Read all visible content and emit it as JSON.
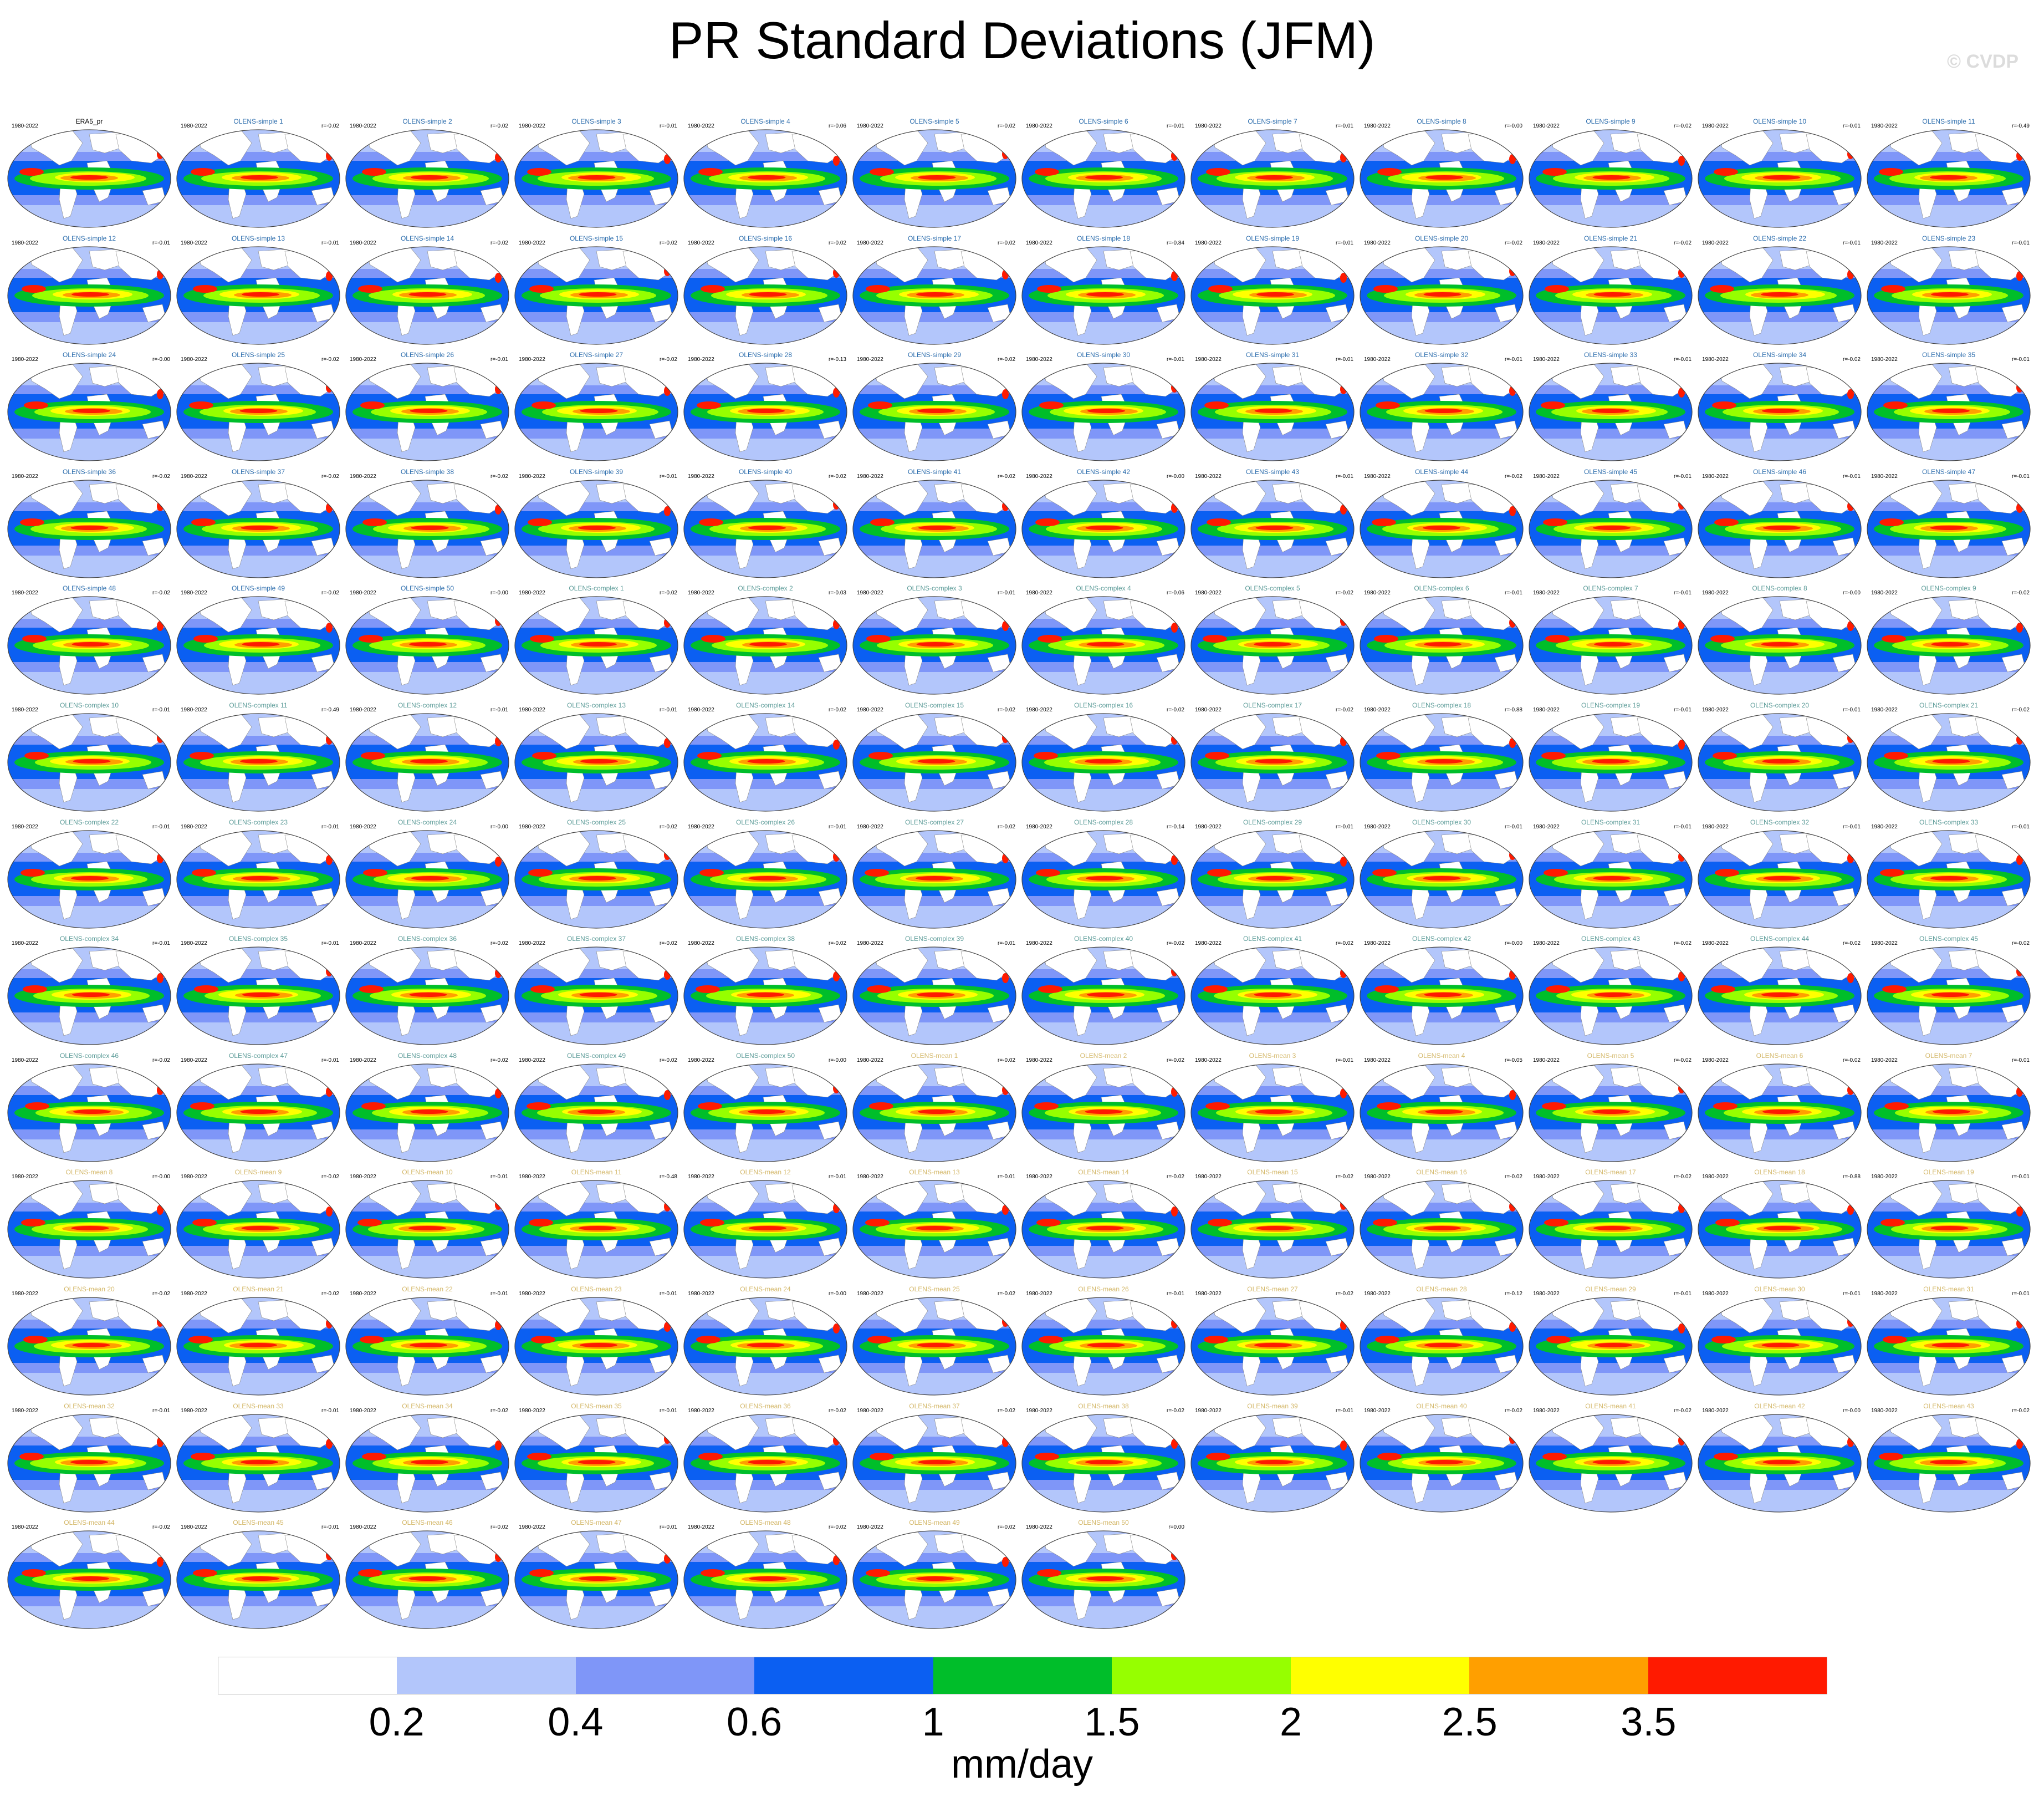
{
  "figure": {
    "title": "PR Standard Deviations (JFM)",
    "watermark": "© CVDP",
    "colorbar_units": "mm/day",
    "colorbar_labels": [
      "0.2",
      "0.4",
      "0.6",
      "1",
      "1.5",
      "2",
      "2.5",
      "3.5"
    ],
    "colorbar_colors": [
      "#ffffff",
      "#b3c6fb",
      "#7f96f8",
      "#0b5ff2",
      "#00be2a",
      "#96ff00",
      "#ffff00",
      "#ff9f00",
      "#ff1a00"
    ]
  },
  "title_colors": {
    "obs": "#000000",
    "simple": "#2f6fae",
    "complex": "#5d9c99",
    "mean": "#d4b86a"
  },
  "panels": [
    {
      "title": "ERA5_pr",
      "years": "1980-2022",
      "r": "",
      "group": "obs"
    },
    {
      "title": "OLENS-simple 1",
      "years": "1980-2022",
      "r": "r=-0.02",
      "group": "simple"
    },
    {
      "title": "OLENS-simple 2",
      "years": "1980-2022",
      "r": "r=-0.02",
      "group": "simple"
    },
    {
      "title": "OLENS-simple 3",
      "years": "1980-2022",
      "r": "r=-0.01",
      "group": "simple"
    },
    {
      "title": "OLENS-simple 4",
      "years": "1980-2022",
      "r": "r=-0.06",
      "group": "simple"
    },
    {
      "title": "OLENS-simple 5",
      "years": "1980-2022",
      "r": "r=-0.02",
      "group": "simple"
    },
    {
      "title": "OLENS-simple 6",
      "years": "1980-2022",
      "r": "r=-0.01",
      "group": "simple"
    },
    {
      "title": "OLENS-simple 7",
      "years": "1980-2022",
      "r": "r=-0.01",
      "group": "simple"
    },
    {
      "title": "OLENS-simple 8",
      "years": "1980-2022",
      "r": "r=-0.00",
      "group": "simple"
    },
    {
      "title": "OLENS-simple 9",
      "years": "1980-2022",
      "r": "r=-0.02",
      "group": "simple"
    },
    {
      "title": "OLENS-simple 10",
      "years": "1980-2022",
      "r": "r=-0.01",
      "group": "simple"
    },
    {
      "title": "OLENS-simple 11",
      "years": "1980-2022",
      "r": "r=-0.49",
      "group": "simple"
    },
    {
      "title": "OLENS-simple 12",
      "years": "1980-2022",
      "r": "r=-0.01",
      "group": "simple"
    },
    {
      "title": "OLENS-simple 13",
      "years": "1980-2022",
      "r": "r=-0.01",
      "group": "simple"
    },
    {
      "title": "OLENS-simple 14",
      "years": "1980-2022",
      "r": "r=-0.02",
      "group": "simple"
    },
    {
      "title": "OLENS-simple 15",
      "years": "1980-2022",
      "r": "r=-0.02",
      "group": "simple"
    },
    {
      "title": "OLENS-simple 16",
      "years": "1980-2022",
      "r": "r=-0.02",
      "group": "simple"
    },
    {
      "title": "OLENS-simple 17",
      "years": "1980-2022",
      "r": "r=-0.02",
      "group": "simple"
    },
    {
      "title": "OLENS-simple 18",
      "years": "1980-2022",
      "r": "r=-0.84",
      "group": "simple"
    },
    {
      "title": "OLENS-simple 19",
      "years": "1980-2022",
      "r": "r=-0.01",
      "group": "simple"
    },
    {
      "title": "OLENS-simple 20",
      "years": "1980-2022",
      "r": "r=-0.02",
      "group": "simple"
    },
    {
      "title": "OLENS-simple 21",
      "years": "1980-2022",
      "r": "r=-0.02",
      "group": "simple"
    },
    {
      "title": "OLENS-simple 22",
      "years": "1980-2022",
      "r": "r=-0.01",
      "group": "simple"
    },
    {
      "title": "OLENS-simple 23",
      "years": "1980-2022",
      "r": "r=-0.01",
      "group": "simple"
    },
    {
      "title": "OLENS-simple 24",
      "years": "1980-2022",
      "r": "r=-0.00",
      "group": "simple"
    },
    {
      "title": "OLENS-simple 25",
      "years": "1980-2022",
      "r": "r=-0.02",
      "group": "simple"
    },
    {
      "title": "OLENS-simple 26",
      "years": "1980-2022",
      "r": "r=-0.01",
      "group": "simple"
    },
    {
      "title": "OLENS-simple 27",
      "years": "1980-2022",
      "r": "r=-0.02",
      "group": "simple"
    },
    {
      "title": "OLENS-simple 28",
      "years": "1980-2022",
      "r": "r=-0.13",
      "group": "simple"
    },
    {
      "title": "OLENS-simple 29",
      "years": "1980-2022",
      "r": "r=-0.02",
      "group": "simple"
    },
    {
      "title": "OLENS-simple 30",
      "years": "1980-2022",
      "r": "r=-0.01",
      "group": "simple"
    },
    {
      "title": "OLENS-simple 31",
      "years": "1980-2022",
      "r": "r=-0.01",
      "group": "simple"
    },
    {
      "title": "OLENS-simple 32",
      "years": "1980-2022",
      "r": "r=-0.01",
      "group": "simple"
    },
    {
      "title": "OLENS-simple 33",
      "years": "1980-2022",
      "r": "r=-0.01",
      "group": "simple"
    },
    {
      "title": "OLENS-simple 34",
      "years": "1980-2022",
      "r": "r=-0.02",
      "group": "simple"
    },
    {
      "title": "OLENS-simple 35",
      "years": "1980-2022",
      "r": "r=-0.01",
      "group": "simple"
    },
    {
      "title": "OLENS-simple 36",
      "years": "1980-2022",
      "r": "r=-0.02",
      "group": "simple"
    },
    {
      "title": "OLENS-simple 37",
      "years": "1980-2022",
      "r": "r=-0.02",
      "group": "simple"
    },
    {
      "title": "OLENS-simple 38",
      "years": "1980-2022",
      "r": "r=-0.02",
      "group": "simple"
    },
    {
      "title": "OLENS-simple 39",
      "years": "1980-2022",
      "r": "r=-0.01",
      "group": "simple"
    },
    {
      "title": "OLENS-simple 40",
      "years": "1980-2022",
      "r": "r=-0.02",
      "group": "simple"
    },
    {
      "title": "OLENS-simple 41",
      "years": "1980-2022",
      "r": "r=-0.02",
      "group": "simple"
    },
    {
      "title": "OLENS-simple 42",
      "years": "1980-2022",
      "r": "r=-0.00",
      "group": "simple"
    },
    {
      "title": "OLENS-simple 43",
      "years": "1980-2022",
      "r": "r=-0.01",
      "group": "simple"
    },
    {
      "title": "OLENS-simple 44",
      "years": "1980-2022",
      "r": "r=-0.02",
      "group": "simple"
    },
    {
      "title": "OLENS-simple 45",
      "years": "1980-2022",
      "r": "r=-0.01",
      "group": "simple"
    },
    {
      "title": "OLENS-simple 46",
      "years": "1980-2022",
      "r": "r=-0.01",
      "group": "simple"
    },
    {
      "title": "OLENS-simple 47",
      "years": "1980-2022",
      "r": "r=-0.01",
      "group": "simple"
    },
    {
      "title": "OLENS-simple 48",
      "years": "1980-2022",
      "r": "r=-0.02",
      "group": "simple"
    },
    {
      "title": "OLENS-simple 49",
      "years": "1980-2022",
      "r": "r=-0.02",
      "group": "simple"
    },
    {
      "title": "OLENS-simple 50",
      "years": "1980-2022",
      "r": "r=-0.00",
      "group": "simple"
    },
    {
      "title": "OLENS-complex 1",
      "years": "1980-2022",
      "r": "r=-0.02",
      "group": "complex"
    },
    {
      "title": "OLENS-complex 2",
      "years": "1980-2022",
      "r": "r=-0.03",
      "group": "complex"
    },
    {
      "title": "OLENS-complex 3",
      "years": "1980-2022",
      "r": "r=-0.01",
      "group": "complex"
    },
    {
      "title": "OLENS-complex 4",
      "years": "1980-2022",
      "r": "r=-0.06",
      "group": "complex"
    },
    {
      "title": "OLENS-complex 5",
      "years": "1980-2022",
      "r": "r=-0.02",
      "group": "complex"
    },
    {
      "title": "OLENS-complex 6",
      "years": "1980-2022",
      "r": "r=-0.01",
      "group": "complex"
    },
    {
      "title": "OLENS-complex 7",
      "years": "1980-2022",
      "r": "r=-0.01",
      "group": "complex"
    },
    {
      "title": "OLENS-complex 8",
      "years": "1980-2022",
      "r": "r=-0.00",
      "group": "complex"
    },
    {
      "title": "OLENS-complex 9",
      "years": "1980-2022",
      "r": "r=-0.02",
      "group": "complex"
    },
    {
      "title": "OLENS-complex 10",
      "years": "1980-2022",
      "r": "r=-0.01",
      "group": "complex"
    },
    {
      "title": "OLENS-complex 11",
      "years": "1980-2022",
      "r": "r=-0.49",
      "group": "complex"
    },
    {
      "title": "OLENS-complex 12",
      "years": "1980-2022",
      "r": "r=-0.01",
      "group": "complex"
    },
    {
      "title": "OLENS-complex 13",
      "years": "1980-2022",
      "r": "r=-0.01",
      "group": "complex"
    },
    {
      "title": "OLENS-complex 14",
      "years": "1980-2022",
      "r": "r=-0.02",
      "group": "complex"
    },
    {
      "title": "OLENS-complex 15",
      "years": "1980-2022",
      "r": "r=-0.02",
      "group": "complex"
    },
    {
      "title": "OLENS-complex 16",
      "years": "1980-2022",
      "r": "r=-0.02",
      "group": "complex"
    },
    {
      "title": "OLENS-complex 17",
      "years": "1980-2022",
      "r": "r=-0.02",
      "group": "complex"
    },
    {
      "title": "OLENS-complex 18",
      "years": "1980-2022",
      "r": "r=-0.88",
      "group": "complex"
    },
    {
      "title": "OLENS-complex 19",
      "years": "1980-2022",
      "r": "r=-0.01",
      "group": "complex"
    },
    {
      "title": "OLENS-complex 20",
      "years": "1980-2022",
      "r": "r=-0.01",
      "group": "complex"
    },
    {
      "title": "OLENS-complex 21",
      "years": "1980-2022",
      "r": "r=-0.02",
      "group": "complex"
    },
    {
      "title": "OLENS-complex 22",
      "years": "1980-2022",
      "r": "r=-0.01",
      "group": "complex"
    },
    {
      "title": "OLENS-complex 23",
      "years": "1980-2022",
      "r": "r=-0.01",
      "group": "complex"
    },
    {
      "title": "OLENS-complex 24",
      "years": "1980-2022",
      "r": "r=-0.00",
      "group": "complex"
    },
    {
      "title": "OLENS-complex 25",
      "years": "1980-2022",
      "r": "r=-0.02",
      "group": "complex"
    },
    {
      "title": "OLENS-complex 26",
      "years": "1980-2022",
      "r": "r=-0.01",
      "group": "complex"
    },
    {
      "title": "OLENS-complex 27",
      "years": "1980-2022",
      "r": "r=-0.02",
      "group": "complex"
    },
    {
      "title": "OLENS-complex 28",
      "years": "1980-2022",
      "r": "r=-0.14",
      "group": "complex"
    },
    {
      "title": "OLENS-complex 29",
      "years": "1980-2022",
      "r": "r=-0.01",
      "group": "complex"
    },
    {
      "title": "OLENS-complex 30",
      "years": "1980-2022",
      "r": "r=-0.01",
      "group": "complex"
    },
    {
      "title": "OLENS-complex 31",
      "years": "1980-2022",
      "r": "r=-0.01",
      "group": "complex"
    },
    {
      "title": "OLENS-complex 32",
      "years": "1980-2022",
      "r": "r=-0.01",
      "group": "complex"
    },
    {
      "title": "OLENS-complex 33",
      "years": "1980-2022",
      "r": "r=-0.01",
      "group": "complex"
    },
    {
      "title": "OLENS-complex 34",
      "years": "1980-2022",
      "r": "r=-0.01",
      "group": "complex"
    },
    {
      "title": "OLENS-complex 35",
      "years": "1980-2022",
      "r": "r=-0.01",
      "group": "complex"
    },
    {
      "title": "OLENS-complex 36",
      "years": "1980-2022",
      "r": "r=-0.02",
      "group": "complex"
    },
    {
      "title": "OLENS-complex 37",
      "years": "1980-2022",
      "r": "r=-0.02",
      "group": "complex"
    },
    {
      "title": "OLENS-complex 38",
      "years": "1980-2022",
      "r": "r=-0.02",
      "group": "complex"
    },
    {
      "title": "OLENS-complex 39",
      "years": "1980-2022",
      "r": "r=-0.01",
      "group": "complex"
    },
    {
      "title": "OLENS-complex 40",
      "years": "1980-2022",
      "r": "r=-0.02",
      "group": "complex"
    },
    {
      "title": "OLENS-complex 41",
      "years": "1980-2022",
      "r": "r=-0.02",
      "group": "complex"
    },
    {
      "title": "OLENS-complex 42",
      "years": "1980-2022",
      "r": "r=-0.00",
      "group": "complex"
    },
    {
      "title": "OLENS-complex 43",
      "years": "1980-2022",
      "r": "r=-0.02",
      "group": "complex"
    },
    {
      "title": "OLENS-complex 44",
      "years": "1980-2022",
      "r": "r=-0.02",
      "group": "complex"
    },
    {
      "title": "OLENS-complex 45",
      "years": "1980-2022",
      "r": "r=-0.02",
      "group": "complex"
    },
    {
      "title": "OLENS-complex 46",
      "years": "1980-2022",
      "r": "r=-0.02",
      "group": "complex"
    },
    {
      "title": "OLENS-complex 47",
      "years": "1980-2022",
      "r": "r=-0.01",
      "group": "complex"
    },
    {
      "title": "OLENS-complex 48",
      "years": "1980-2022",
      "r": "r=-0.02",
      "group": "complex"
    },
    {
      "title": "OLENS-complex 49",
      "years": "1980-2022",
      "r": "r=-0.02",
      "group": "complex"
    },
    {
      "title": "OLENS-complex 50",
      "years": "1980-2022",
      "r": "r=-0.00",
      "group": "complex"
    },
    {
      "title": "OLENS-mean 1",
      "years": "1980-2022",
      "r": "r=-0.02",
      "group": "mean"
    },
    {
      "title": "OLENS-mean 2",
      "years": "1980-2022",
      "r": "r=-0.02",
      "group": "mean"
    },
    {
      "title": "OLENS-mean 3",
      "years": "1980-2022",
      "r": "r=-0.01",
      "group": "mean"
    },
    {
      "title": "OLENS-mean 4",
      "years": "1980-2022",
      "r": "r=-0.05",
      "group": "mean"
    },
    {
      "title": "OLENS-mean 5",
      "years": "1980-2022",
      "r": "r=-0.02",
      "group": "mean"
    },
    {
      "title": "OLENS-mean 6",
      "years": "1980-2022",
      "r": "r=-0.02",
      "group": "mean"
    },
    {
      "title": "OLENS-mean 7",
      "years": "1980-2022",
      "r": "r=-0.01",
      "group": "mean"
    },
    {
      "title": "OLENS-mean 8",
      "years": "1980-2022",
      "r": "r=-0.00",
      "group": "mean"
    },
    {
      "title": "OLENS-mean 9",
      "years": "1980-2022",
      "r": "r=-0.02",
      "group": "mean"
    },
    {
      "title": "OLENS-mean 10",
      "years": "1980-2022",
      "r": "r=-0.01",
      "group": "mean"
    },
    {
      "title": "OLENS-mean 11",
      "years": "1980-2022",
      "r": "r=-0.48",
      "group": "mean"
    },
    {
      "title": "OLENS-mean 12",
      "years": "1980-2022",
      "r": "r=-0.01",
      "group": "mean"
    },
    {
      "title": "OLENS-mean 13",
      "years": "1980-2022",
      "r": "r=-0.01",
      "group": "mean"
    },
    {
      "title": "OLENS-mean 14",
      "years": "1980-2022",
      "r": "r=-0.02",
      "group": "mean"
    },
    {
      "title": "OLENS-mean 15",
      "years": "1980-2022",
      "r": "r=-0.02",
      "group": "mean"
    },
    {
      "title": "OLENS-mean 16",
      "years": "1980-2022",
      "r": "r=-0.02",
      "group": "mean"
    },
    {
      "title": "OLENS-mean 17",
      "years": "1980-2022",
      "r": "r=-0.02",
      "group": "mean"
    },
    {
      "title": "OLENS-mean 18",
      "years": "1980-2022",
      "r": "r=-0.88",
      "group": "mean"
    },
    {
      "title": "OLENS-mean 19",
      "years": "1980-2022",
      "r": "r=-0.01",
      "group": "mean"
    },
    {
      "title": "OLENS-mean 20",
      "years": "1980-2022",
      "r": "r=-0.02",
      "group": "mean"
    },
    {
      "title": "OLENS-mean 21",
      "years": "1980-2022",
      "r": "r=-0.02",
      "group": "mean"
    },
    {
      "title": "OLENS-mean 22",
      "years": "1980-2022",
      "r": "r=-0.01",
      "group": "mean"
    },
    {
      "title": "OLENS-mean 23",
      "years": "1980-2022",
      "r": "r=-0.01",
      "group": "mean"
    },
    {
      "title": "OLENS-mean 24",
      "years": "1980-2022",
      "r": "r=-0.00",
      "group": "mean"
    },
    {
      "title": "OLENS-mean 25",
      "years": "1980-2022",
      "r": "r=-0.02",
      "group": "mean"
    },
    {
      "title": "OLENS-mean 26",
      "years": "1980-2022",
      "r": "r=-0.01",
      "group": "mean"
    },
    {
      "title": "OLENS-mean 27",
      "years": "1980-2022",
      "r": "r=-0.02",
      "group": "mean"
    },
    {
      "title": "OLENS-mean 28",
      "years": "1980-2022",
      "r": "r=-0.12",
      "group": "mean"
    },
    {
      "title": "OLENS-mean 29",
      "years": "1980-2022",
      "r": "r=-0.01",
      "group": "mean"
    },
    {
      "title": "OLENS-mean 30",
      "years": "1980-2022",
      "r": "r=-0.01",
      "group": "mean"
    },
    {
      "title": "OLENS-mean 31",
      "years": "1980-2022",
      "r": "r=-0.01",
      "group": "mean"
    },
    {
      "title": "OLENS-mean 32",
      "years": "1980-2022",
      "r": "r=-0.01",
      "group": "mean"
    },
    {
      "title": "OLENS-mean 33",
      "years": "1980-2022",
      "r": "r=-0.01",
      "group": "mean"
    },
    {
      "title": "OLENS-mean 34",
      "years": "1980-2022",
      "r": "r=-0.02",
      "group": "mean"
    },
    {
      "title": "OLENS-mean 35",
      "years": "1980-2022",
      "r": "r=-0.01",
      "group": "mean"
    },
    {
      "title": "OLENS-mean 36",
      "years": "1980-2022",
      "r": "r=-0.02",
      "group": "mean"
    },
    {
      "title": "OLENS-mean 37",
      "years": "1980-2022",
      "r": "r=-0.02",
      "group": "mean"
    },
    {
      "title": "OLENS-mean 38",
      "years": "1980-2022",
      "r": "r=-0.02",
      "group": "mean"
    },
    {
      "title": "OLENS-mean 39",
      "years": "1980-2022",
      "r": "r=-0.01",
      "group": "mean"
    },
    {
      "title": "OLENS-mean 40",
      "years": "1980-2022",
      "r": "r=-0.02",
      "group": "mean"
    },
    {
      "title": "OLENS-mean 41",
      "years": "1980-2022",
      "r": "r=-0.02",
      "group": "mean"
    },
    {
      "title": "OLENS-mean 42",
      "years": "1980-2022",
      "r": "r=-0.00",
      "group": "mean"
    },
    {
      "title": "OLENS-mean 43",
      "years": "1980-2022",
      "r": "r=-0.02",
      "group": "mean"
    },
    {
      "title": "OLENS-mean 44",
      "years": "1980-2022",
      "r": "r=-0.02",
      "group": "mean"
    },
    {
      "title": "OLENS-mean 45",
      "years": "1980-2022",
      "r": "r=-0.01",
      "group": "mean"
    },
    {
      "title": "OLENS-mean 46",
      "years": "1980-2022",
      "r": "r=-0.02",
      "group": "mean"
    },
    {
      "title": "OLENS-mean 47",
      "years": "1980-2022",
      "r": "r=-0.01",
      "group": "mean"
    },
    {
      "title": "OLENS-mean 48",
      "years": "1980-2022",
      "r": "r=-0.02",
      "group": "mean"
    },
    {
      "title": "OLENS-mean 49",
      "years": "1980-2022",
      "r": "r=-0.02",
      "group": "mean"
    },
    {
      "title": "OLENS-mean 50",
      "years": "1980-2022",
      "r": "r=0.00",
      "group": "mean"
    }
  ]
}
